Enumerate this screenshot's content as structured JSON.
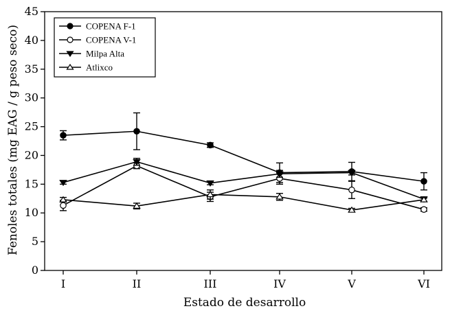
{
  "chart_data": {
    "type": "line",
    "xlabel": "Estado de desarrollo",
    "ylabel": "Fenoles totales (mg EAG / g peso seco)",
    "categories": [
      "I",
      "II",
      "III",
      "IV",
      "V",
      "VI"
    ],
    "ylim": [
      0,
      45
    ],
    "yticks": [
      0,
      5,
      10,
      15,
      20,
      25,
      30,
      35,
      40,
      45
    ],
    "grid": false,
    "legend_position": "top-left",
    "series": [
      {
        "name": "COPENA F-1",
        "marker": "filled-circle",
        "values": [
          23.5,
          24.2,
          21.8,
          17.0,
          17.2,
          15.5
        ],
        "errors": [
          0.8,
          3.2,
          0.4,
          1.7,
          1.6,
          1.5
        ]
      },
      {
        "name": "COPENA V-1",
        "marker": "open-circle",
        "values": [
          11.3,
          18.2,
          12.8,
          16.0,
          14.0,
          10.6
        ],
        "errors": [
          0.9,
          0.5,
          0.8,
          1.0,
          1.5,
          0.3
        ]
      },
      {
        "name": "Milpa Alta",
        "marker": "filled-triangle-down",
        "values": [
          15.3,
          18.9,
          15.2,
          16.8,
          17.0,
          12.4
        ],
        "errors": [
          0.3,
          0.6,
          0.3,
          0.6,
          0.4,
          0.4
        ]
      },
      {
        "name": "Atlixco",
        "marker": "open-triangle-up",
        "values": [
          12.3,
          11.2,
          13.2,
          12.8,
          10.5,
          12.3
        ],
        "errors": [
          0.4,
          0.5,
          0.8,
          0.6,
          0.3,
          0.3
        ]
      }
    ]
  }
}
